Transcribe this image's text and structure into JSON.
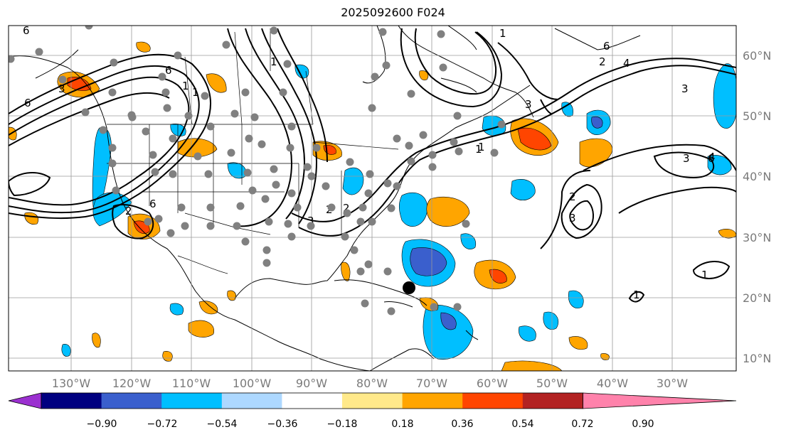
{
  "title": "2025092600 F024",
  "lat_labels": [
    "60°N",
    "50°N",
    "40°N",
    "30°N",
    "20°N",
    "10°N"
  ],
  "lon_labels": [
    "130°W",
    "120°W",
    "110°W",
    "100°W",
    "90°W",
    "80°W",
    "70°W",
    "60°W",
    "50°W",
    "40°W",
    "30°W"
  ],
  "colorbar": {
    "ticks": [
      "−0.90",
      "−0.72",
      "−0.54",
      "−0.36",
      "−0.18",
      "0.18",
      "0.36",
      "0.54",
      "0.72",
      "0.90"
    ],
    "colors": [
      "#9b30d0",
      "#000080",
      "#3a5fcd",
      "#00bfff",
      "#add8ff",
      "#ffffff",
      "#ffe98a",
      "#ffa500",
      "#ff4500",
      "#b22222",
      "#ff82ab"
    ]
  },
  "contour_labels": [
    "6",
    "6",
    "6",
    "1",
    "1",
    "2",
    "6",
    "1",
    "1",
    "6",
    "2",
    "3",
    "4",
    "3",
    "3",
    "6",
    "4",
    "2",
    "3",
    "2",
    "2",
    "3",
    "1",
    "1",
    "1",
    "3",
    "1"
  ]
}
